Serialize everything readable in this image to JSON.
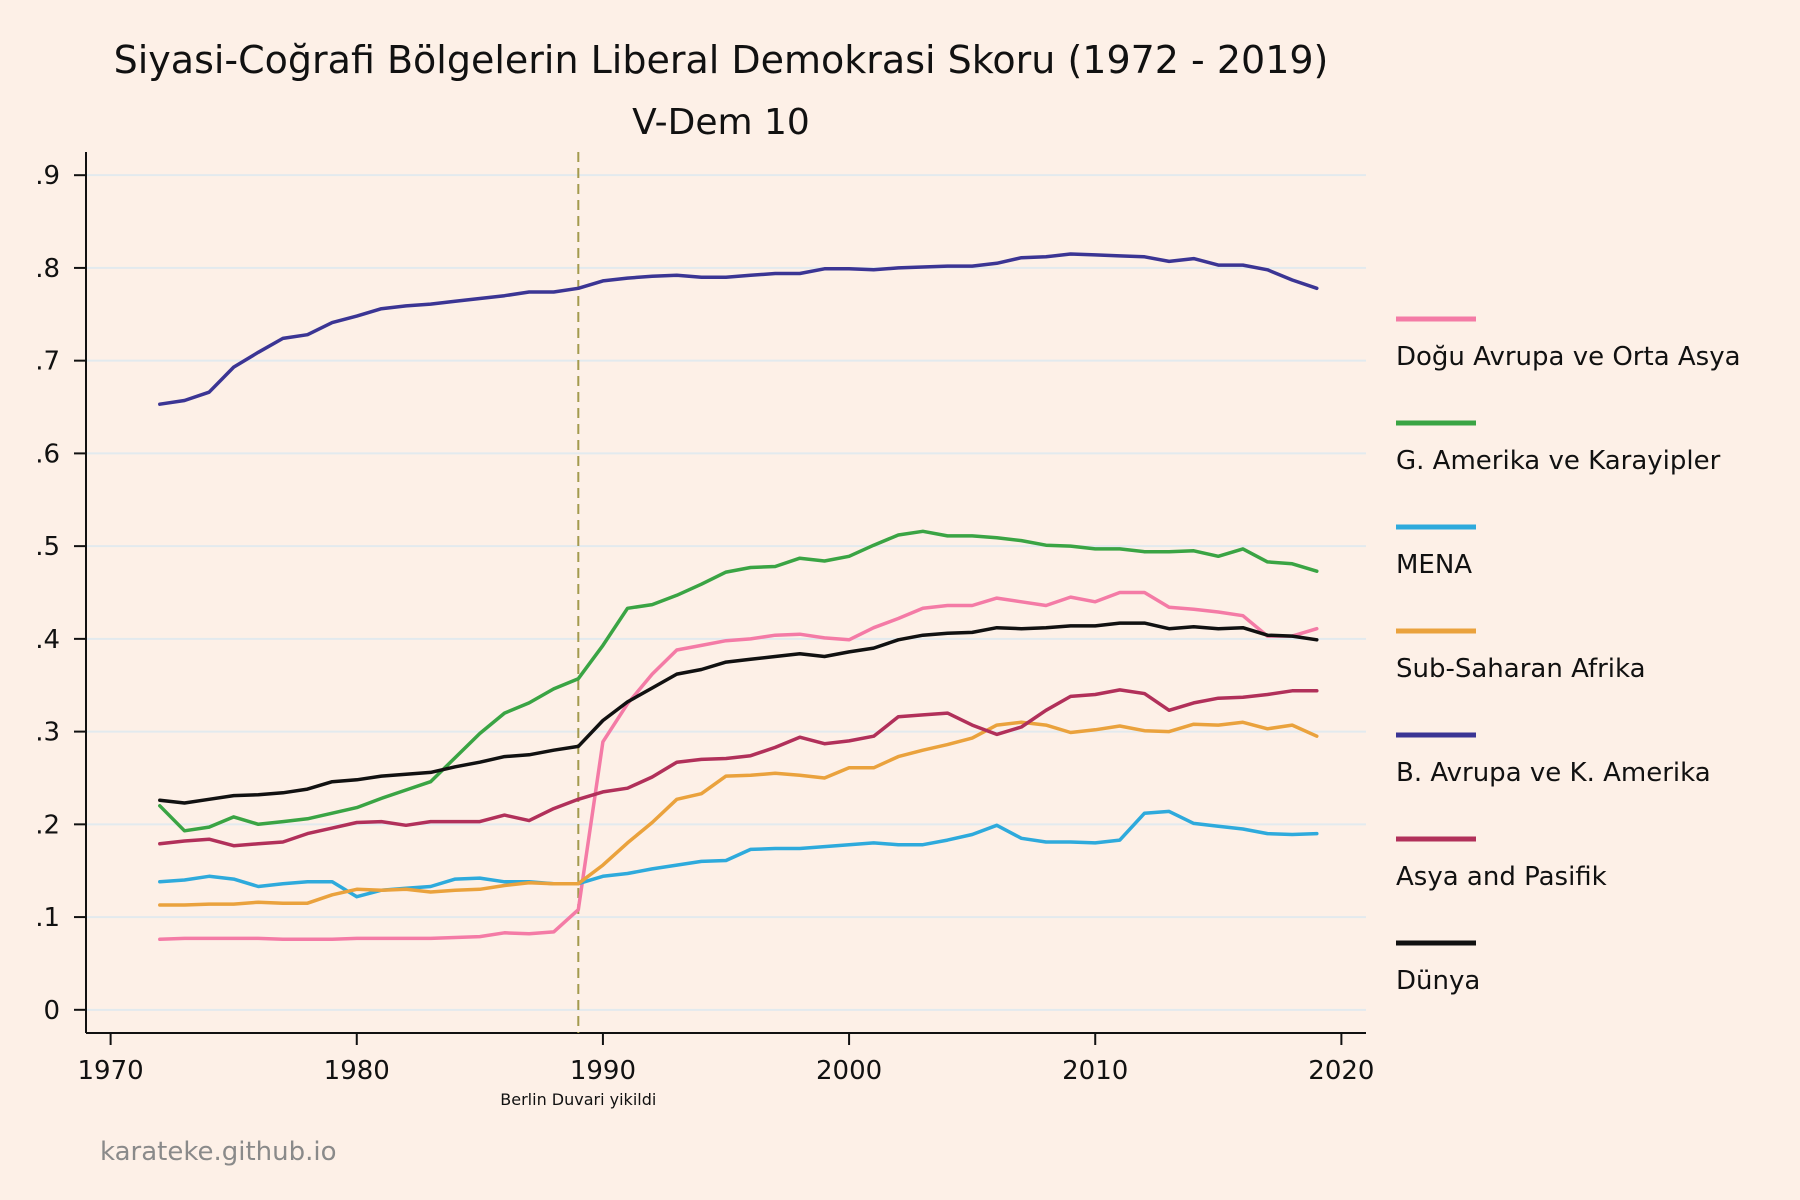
{
  "title": "Siyasi-Coğrafi Bölgelerin Liberal Demokrasi Skoru (1972 - 2019)",
  "subtitle": "V-Dem 10",
  "credit": "karateke.github.io",
  "colors": {
    "background": "#fdf0e7",
    "grid": "#e2eaee",
    "axis": "#111111",
    "annotation_line": "#a39a4e"
  },
  "chart_data": {
    "type": "line",
    "title": "Siyasi-Coğrafi Bölgelerin Liberal Demokrasi Skoru (1972 - 2019)",
    "subtitle": "V-Dem 10",
    "xlabel": "",
    "ylabel": "",
    "xlim": [
      1969,
      2021
    ],
    "ylim": [
      -0.025,
      0.925
    ],
    "xticks": [
      1970,
      1980,
      1990,
      2000,
      2010,
      2020
    ],
    "xtick_labels": [
      "1970",
      "1980",
      "1990",
      "2000",
      "2010",
      "2020"
    ],
    "yticks": [
      0,
      0.1,
      0.2,
      0.3,
      0.4,
      0.5,
      0.6,
      0.7,
      0.8,
      0.9
    ],
    "ytick_labels": [
      "0",
      ".1",
      ".2",
      ".3",
      ".4",
      ".5",
      ".6",
      ".7",
      ".8",
      ".9"
    ],
    "grid": true,
    "legend_position": "right",
    "annotation": {
      "x": 1989,
      "label": "Berlin Duvari yikildi",
      "style": "dashed"
    },
    "x": [
      1972,
      1973,
      1974,
      1975,
      1976,
      1977,
      1978,
      1979,
      1980,
      1981,
      1982,
      1983,
      1984,
      1985,
      1986,
      1987,
      1988,
      1989,
      1990,
      1991,
      1992,
      1993,
      1994,
      1995,
      1996,
      1997,
      1998,
      1999,
      2000,
      2001,
      2002,
      2003,
      2004,
      2005,
      2006,
      2007,
      2008,
      2009,
      2010,
      2011,
      2012,
      2013,
      2014,
      2015,
      2016,
      2017,
      2018,
      2019
    ],
    "series": [
      {
        "name": "Doğu Avrupa ve Orta Asya",
        "color": "#f47ba6",
        "values": [
          0.076,
          0.077,
          0.077,
          0.077,
          0.077,
          0.076,
          0.076,
          0.076,
          0.077,
          0.077,
          0.077,
          0.077,
          0.078,
          0.079,
          0.083,
          0.082,
          0.084,
          0.108,
          0.289,
          0.33,
          0.362,
          0.388,
          0.393,
          0.398,
          0.4,
          0.404,
          0.405,
          0.401,
          0.399,
          0.412,
          0.422,
          0.433,
          0.436,
          0.436,
          0.444,
          0.44,
          0.436,
          0.445,
          0.44,
          0.45,
          0.45,
          0.434,
          0.432,
          0.429,
          0.425,
          0.403,
          0.403,
          0.411
        ]
      },
      {
        "name": "G. Amerika ve Karayipler",
        "color": "#3aa444",
        "values": [
          0.22,
          0.193,
          0.197,
          0.208,
          0.2,
          0.203,
          0.206,
          0.212,
          0.218,
          0.228,
          0.237,
          0.246,
          0.272,
          0.298,
          0.32,
          0.331,
          0.346,
          0.357,
          0.393,
          0.433,
          0.437,
          0.447,
          0.459,
          0.472,
          0.477,
          0.478,
          0.487,
          0.484,
          0.489,
          0.501,
          0.512,
          0.516,
          0.511,
          0.511,
          0.509,
          0.506,
          0.501,
          0.5,
          0.497,
          0.497,
          0.494,
          0.494,
          0.495,
          0.489,
          0.497,
          0.483,
          0.481,
          0.473
        ]
      },
      {
        "name": "MENA",
        "color": "#2eaadc",
        "values": [
          0.138,
          0.14,
          0.144,
          0.141,
          0.133,
          0.136,
          0.138,
          0.138,
          0.122,
          0.129,
          0.131,
          0.133,
          0.141,
          0.142,
          0.138,
          0.138,
          0.136,
          0.136,
          0.144,
          0.147,
          0.152,
          0.156,
          0.16,
          0.161,
          0.173,
          0.174,
          0.174,
          0.176,
          0.178,
          0.18,
          0.178,
          0.178,
          0.183,
          0.189,
          0.199,
          0.185,
          0.181,
          0.181,
          0.18,
          0.183,
          0.212,
          0.214,
          0.201,
          0.198,
          0.195,
          0.19,
          0.189,
          0.19
        ]
      },
      {
        "name": "Sub-Saharan Afrika",
        "color": "#eaa23d",
        "values": [
          0.113,
          0.113,
          0.114,
          0.114,
          0.116,
          0.115,
          0.115,
          0.124,
          0.13,
          0.129,
          0.13,
          0.127,
          0.129,
          0.13,
          0.134,
          0.137,
          0.136,
          0.136,
          0.156,
          0.18,
          0.202,
          0.227,
          0.233,
          0.252,
          0.253,
          0.255,
          0.253,
          0.25,
          0.261,
          0.261,
          0.273,
          0.28,
          0.286,
          0.293,
          0.307,
          0.31,
          0.307,
          0.299,
          0.302,
          0.306,
          0.301,
          0.3,
          0.308,
          0.307,
          0.31,
          0.303,
          0.307,
          0.295
        ]
      },
      {
        "name": "B. Avrupa ve K. Amerika",
        "color": "#3b3594",
        "values": [
          0.653,
          0.657,
          0.666,
          0.693,
          0.709,
          0.724,
          0.728,
          0.741,
          0.748,
          0.756,
          0.759,
          0.761,
          0.764,
          0.767,
          0.77,
          0.774,
          0.774,
          0.778,
          0.786,
          0.789,
          0.791,
          0.792,
          0.79,
          0.79,
          0.792,
          0.794,
          0.794,
          0.799,
          0.799,
          0.798,
          0.8,
          0.801,
          0.802,
          0.802,
          0.805,
          0.811,
          0.812,
          0.815,
          0.814,
          0.813,
          0.812,
          0.807,
          0.81,
          0.803,
          0.803,
          0.798,
          0.787,
          0.778
        ]
      },
      {
        "name": "Asya and Pasifik",
        "color": "#b1305a",
        "values": [
          0.179,
          0.182,
          0.184,
          0.177,
          0.179,
          0.181,
          0.19,
          0.196,
          0.202,
          0.203,
          0.199,
          0.203,
          0.203,
          0.203,
          0.21,
          0.204,
          0.217,
          0.227,
          0.235,
          0.239,
          0.251,
          0.267,
          0.27,
          0.271,
          0.274,
          0.283,
          0.294,
          0.287,
          0.29,
          0.295,
          0.316,
          0.318,
          0.32,
          0.307,
          0.297,
          0.305,
          0.323,
          0.338,
          0.34,
          0.345,
          0.341,
          0.323,
          0.331,
          0.336,
          0.337,
          0.34,
          0.344,
          0.344
        ]
      },
      {
        "name": "Dünya",
        "color": "#111111",
        "values": [
          0.226,
          0.223,
          0.227,
          0.231,
          0.232,
          0.234,
          0.238,
          0.246,
          0.248,
          0.252,
          0.254,
          0.256,
          0.262,
          0.267,
          0.273,
          0.275,
          0.28,
          0.284,
          0.312,
          0.332,
          0.347,
          0.362,
          0.367,
          0.375,
          0.378,
          0.381,
          0.384,
          0.381,
          0.386,
          0.39,
          0.399,
          0.404,
          0.406,
          0.407,
          0.412,
          0.411,
          0.412,
          0.414,
          0.414,
          0.417,
          0.417,
          0.411,
          0.413,
          0.411,
          0.412,
          0.404,
          0.403,
          0.399
        ]
      }
    ]
  }
}
